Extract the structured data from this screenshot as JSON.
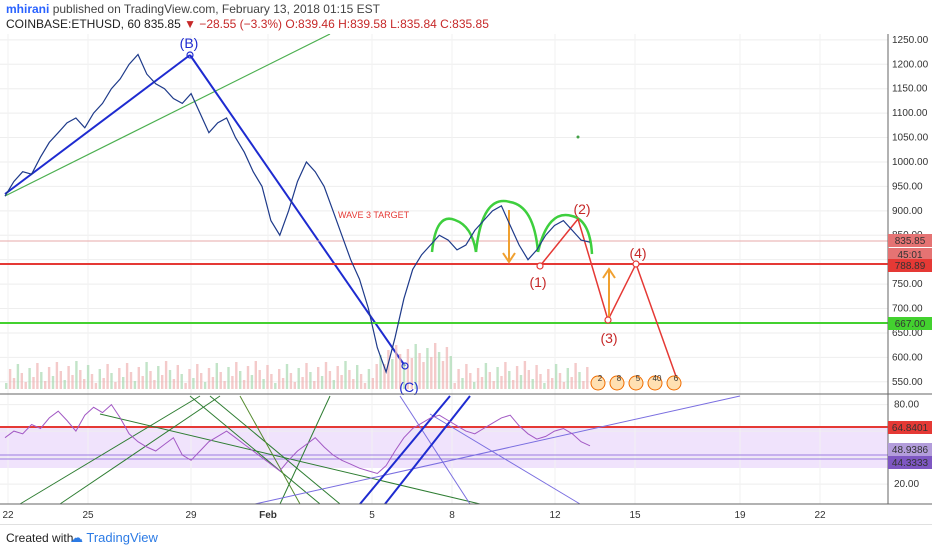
{
  "header": {
    "author": "mhirani",
    "published_text": "published on TradingView.com, February 13, 2018 01:15 EST",
    "symbol": "COINBASE:ETHUSD, 60",
    "last": "835.85",
    "change": "▼ −28.55 (−3.3%)",
    "ohlc": "O:839.46 H:839.58 L:835.84 C:835.85"
  },
  "footer": {
    "created_with": "Created with",
    "brand": "TradingView"
  },
  "chart_data": [
    {
      "type": "line",
      "panel": "price",
      "y_ticks": [
        1250,
        1200,
        1150,
        1100,
        1050,
        1000,
        950,
        900,
        850,
        800,
        750,
        700,
        650,
        600,
        550
      ],
      "ylim": [
        525,
        1262
      ],
      "x_ticks": [
        "22",
        "25",
        "29",
        "Feb",
        "5",
        "8",
        "12",
        "15",
        "19",
        "22"
      ],
      "series": [
        {
          "values": [
            930,
            960,
            980,
            975,
            1010,
            1040,
            1060,
            1080,
            1090,
            1070,
            1100,
            1120,
            1150,
            1170,
            1200,
            1220,
            1180,
            1160,
            1150,
            1130,
            1120,
            1140,
            1100,
            1060,
            1080,
            1090,
            1050,
            1020,
            980,
            950,
            880,
            850,
            900,
            960,
            1000,
            980,
            950,
            900,
            850,
            800,
            760,
            700,
            620,
            570,
            640,
            720,
            780,
            810,
            830,
            850,
            840,
            820,
            830,
            860,
            880,
            900,
            910,
            870,
            830,
            800,
            820,
            850,
            870,
            880,
            860,
            840,
            835.85
          ]
        }
      ],
      "price_labels": [
        "835.85",
        "45:01",
        "788.89",
        "667.00"
      ],
      "annotations": [
        "(B)",
        "(C)",
        "WAVE 3 TARGET",
        "(1)",
        "(2)",
        "(3)",
        "(4)"
      ],
      "volume_icons": [
        "2",
        "8",
        "5",
        "40",
        "6"
      ]
    },
    {
      "type": "line",
      "panel": "rsi",
      "y_ticks": [
        80.0,
        60.0,
        40.0,
        20.0
      ],
      "ylim": [
        5,
        88
      ],
      "values": [
        55,
        60,
        58,
        65,
        62,
        70,
        75,
        68,
        60,
        72,
        78,
        74,
        80,
        70,
        58,
        52,
        48,
        45,
        50,
        55,
        42,
        38,
        45,
        52,
        56,
        60,
        55,
        50,
        45,
        40,
        35,
        30,
        38,
        45,
        50,
        55,
        48,
        42,
        38,
        35,
        32,
        30,
        28,
        34,
        45,
        55,
        62,
        66,
        70,
        72,
        68,
        64,
        60,
        58,
        62,
        66,
        70,
        72,
        64,
        58,
        54,
        56,
        60,
        62,
        58,
        52,
        48.94
      ],
      "levels": [
        "64.8401",
        "48.9386",
        "44.3333"
      ]
    }
  ]
}
